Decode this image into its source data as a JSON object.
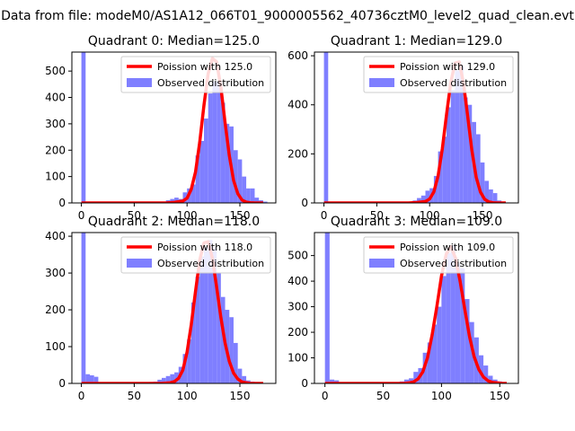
{
  "figure": {
    "suptitle": "Data from file: modeM0/AS1A12_066T01_9000005562_40736cztM0_level2_quad_clean.evt"
  },
  "colors": {
    "observed": "#7f7fff",
    "poisson": "#ff0000",
    "axes": "#000000",
    "background": "#ffffff"
  },
  "chart_data": [
    {
      "type": "bar",
      "title": "Quadrant 0: Median=125.0",
      "xlabel": "",
      "ylabel": "",
      "xlim": [
        -9,
        184
      ],
      "ylim": [
        0,
        572
      ],
      "xticks": [
        0,
        50,
        100,
        150
      ],
      "yticks": [
        0,
        100,
        200,
        300,
        400,
        500
      ],
      "legend": {
        "placement": "top-right",
        "entries": [
          "Poission with 125.0",
          "Observed distribution"
        ]
      },
      "poisson_mean": 125.0,
      "series": [
        {
          "name": "Observed distribution",
          "kind": "histogram",
          "bin_width": 4,
          "bins": [
            [
              0,
              572
            ],
            [
              4,
              2
            ],
            [
              8,
              2
            ],
            [
              12,
              1
            ],
            [
              16,
              1
            ],
            [
              20,
              1
            ],
            [
              24,
              0
            ],
            [
              28,
              0
            ],
            [
              32,
              0
            ],
            [
              36,
              0
            ],
            [
              40,
              0
            ],
            [
              44,
              0
            ],
            [
              48,
              0
            ],
            [
              52,
              0
            ],
            [
              56,
              0
            ],
            [
              60,
              0
            ],
            [
              64,
              1
            ],
            [
              68,
              1
            ],
            [
              72,
              2
            ],
            [
              76,
              5
            ],
            [
              80,
              10
            ],
            [
              84,
              15
            ],
            [
              88,
              20
            ],
            [
              92,
              15
            ],
            [
              96,
              40
            ],
            [
              100,
              55
            ],
            [
              104,
              70
            ],
            [
              108,
              180
            ],
            [
              112,
              235
            ],
            [
              116,
              320
            ],
            [
              120,
              415
            ],
            [
              124,
              460
            ],
            [
              128,
              460
            ],
            [
              132,
              380
            ],
            [
              136,
              300
            ],
            [
              140,
              290
            ],
            [
              144,
              200
            ],
            [
              148,
              165
            ],
            [
              152,
              100
            ],
            [
              156,
              55
            ],
            [
              160,
              55
            ],
            [
              164,
              20
            ],
            [
              168,
              10
            ],
            [
              172,
              5
            ]
          ]
        },
        {
          "name": "Poission with 125.0",
          "kind": "line",
          "x": [
            0,
            80,
            88,
            96,
            100,
            104,
            108,
            112,
            116,
            120,
            124,
            128,
            132,
            136,
            140,
            144,
            148,
            152,
            156,
            160,
            164,
            168,
            172
          ],
          "y": [
            0,
            0,
            2,
            7,
            18,
            52,
            117,
            230,
            370,
            490,
            548,
            535,
            440,
            305,
            180,
            85,
            35,
            11,
            3,
            1,
            0,
            0,
            0
          ]
        }
      ]
    },
    {
      "type": "bar",
      "title": "Quadrant 1: Median=129.0",
      "xlabel": "",
      "ylabel": "",
      "xlim": [
        -9,
        184
      ],
      "ylim": [
        0,
        615
      ],
      "xticks": [
        0,
        50,
        100,
        150
      ],
      "yticks": [
        0,
        200,
        400,
        600
      ],
      "legend": {
        "placement": "top-right",
        "entries": [
          "Poission with 129.0",
          "Observed distribution"
        ]
      },
      "poisson_mean": 129.0,
      "series": [
        {
          "name": "Observed distribution",
          "kind": "histogram",
          "bin_width": 4,
          "bins": [
            [
              0,
              615
            ],
            [
              4,
              0
            ],
            [
              8,
              0
            ],
            [
              12,
              0
            ],
            [
              16,
              0
            ],
            [
              20,
              0
            ],
            [
              24,
              0
            ],
            [
              28,
              0
            ],
            [
              32,
              0
            ],
            [
              36,
              0
            ],
            [
              40,
              0
            ],
            [
              44,
              0
            ],
            [
              48,
              0
            ],
            [
              52,
              0
            ],
            [
              56,
              0
            ],
            [
              60,
              0
            ],
            [
              64,
              0
            ],
            [
              68,
              0
            ],
            [
              72,
              0
            ],
            [
              76,
              2
            ],
            [
              80,
              5
            ],
            [
              84,
              10
            ],
            [
              88,
              20
            ],
            [
              92,
              30
            ],
            [
              96,
              50
            ],
            [
              100,
              60
            ],
            [
              104,
              110
            ],
            [
              108,
              210
            ],
            [
              112,
              270
            ],
            [
              116,
              390
            ],
            [
              120,
              460
            ],
            [
              124,
              540
            ],
            [
              128,
              560
            ],
            [
              132,
              430
            ],
            [
              136,
              400
            ],
            [
              140,
              330
            ],
            [
              144,
              280
            ],
            [
              148,
              165
            ],
            [
              152,
              90
            ],
            [
              156,
              55
            ],
            [
              160,
              40
            ],
            [
              164,
              10
            ],
            [
              168,
              5
            ],
            [
              172,
              2
            ]
          ]
        },
        {
          "name": "Poission with 129.0",
          "kind": "line",
          "x": [
            0,
            80,
            88,
            96,
            100,
            104,
            108,
            112,
            116,
            120,
            124,
            128,
            132,
            136,
            140,
            144,
            148,
            152,
            156,
            160,
            164,
            168,
            172
          ],
          "y": [
            0,
            0,
            2,
            6,
            16,
            45,
            110,
            220,
            360,
            490,
            570,
            575,
            490,
            355,
            215,
            105,
            45,
            15,
            4,
            1,
            0,
            0,
            0
          ]
        }
      ]
    },
    {
      "type": "bar",
      "title": "Quadrant 2: Median=118.0",
      "xlabel": "",
      "ylabel": "",
      "xlim": [
        -9,
        184
      ],
      "ylim": [
        0,
        410
      ],
      "xticks": [
        0,
        50,
        100,
        150
      ],
      "yticks": [
        0,
        100,
        200,
        300,
        400
      ],
      "legend": {
        "placement": "top-right",
        "entries": [
          "Poission with 118.0",
          "Observed distribution"
        ]
      },
      "poisson_mean": 118.0,
      "series": [
        {
          "name": "Observed distribution",
          "kind": "histogram",
          "bin_width": 4,
          "bins": [
            [
              0,
              410
            ],
            [
              4,
              25
            ],
            [
              8,
              22
            ],
            [
              12,
              18
            ],
            [
              16,
              2
            ],
            [
              20,
              1
            ],
            [
              24,
              1
            ],
            [
              28,
              1
            ],
            [
              32,
              1
            ],
            [
              36,
              1
            ],
            [
              40,
              2
            ],
            [
              44,
              2
            ],
            [
              48,
              2
            ],
            [
              52,
              2
            ],
            [
              56,
              2
            ],
            [
              60,
              2
            ],
            [
              64,
              4
            ],
            [
              68,
              5
            ],
            [
              72,
              10
            ],
            [
              76,
              15
            ],
            [
              80,
              20
            ],
            [
              84,
              25
            ],
            [
              88,
              30
            ],
            [
              92,
              45
            ],
            [
              96,
              80
            ],
            [
              100,
              120
            ],
            [
              104,
              220
            ],
            [
              108,
              290
            ],
            [
              112,
              345
            ],
            [
              116,
              370
            ],
            [
              120,
              390
            ],
            [
              124,
              370
            ],
            [
              128,
              300
            ],
            [
              132,
              235
            ],
            [
              136,
              200
            ],
            [
              140,
              180
            ],
            [
              144,
              110
            ],
            [
              148,
              40
            ],
            [
              152,
              20
            ],
            [
              156,
              8
            ],
            [
              160,
              5
            ],
            [
              164,
              2
            ],
            [
              168,
              2
            ],
            [
              172,
              1
            ]
          ]
        },
        {
          "name": "Poission with 118.0",
          "kind": "line",
          "x": [
            0,
            76,
            84,
            88,
            92,
            96,
            100,
            104,
            108,
            112,
            116,
            120,
            124,
            128,
            132,
            136,
            140,
            144,
            148,
            152,
            156,
            160,
            164,
            172
          ],
          "y": [
            0,
            0,
            2,
            5,
            14,
            36,
            85,
            160,
            250,
            335,
            382,
            385,
            340,
            262,
            180,
            110,
            60,
            28,
            12,
            4,
            2,
            0,
            0,
            0
          ]
        }
      ]
    },
    {
      "type": "bar",
      "title": "Quadrant 3: Median=109.0",
      "xlabel": "",
      "ylabel": "",
      "xlim": [
        -9,
        166
      ],
      "ylim": [
        0,
        590
      ],
      "xticks": [
        0,
        50,
        100,
        150
      ],
      "yticks": [
        0,
        100,
        200,
        300,
        400,
        500
      ],
      "legend": {
        "placement": "top-right",
        "entries": [
          "Poission with 109.0",
          "Observed distribution"
        ]
      },
      "poisson_mean": 109.0,
      "series": [
        {
          "name": "Observed distribution",
          "kind": "histogram",
          "bin_width": 4,
          "bins": [
            [
              0,
              590
            ],
            [
              4,
              15
            ],
            [
              8,
              12
            ],
            [
              12,
              4
            ],
            [
              16,
              2
            ],
            [
              20,
              1
            ],
            [
              24,
              1
            ],
            [
              28,
              1
            ],
            [
              32,
              1
            ],
            [
              36,
              1
            ],
            [
              40,
              2
            ],
            [
              44,
              2
            ],
            [
              48,
              3
            ],
            [
              52,
              3
            ],
            [
              56,
              4
            ],
            [
              60,
              5
            ],
            [
              64,
              8
            ],
            [
              68,
              15
            ],
            [
              72,
              20
            ],
            [
              76,
              45
            ],
            [
              80,
              60
            ],
            [
              84,
              120
            ],
            [
              88,
              160
            ],
            [
              92,
              230
            ],
            [
              96,
              300
            ],
            [
              100,
              420
            ],
            [
              104,
              510
            ],
            [
              108,
              540
            ],
            [
              112,
              470
            ],
            [
              116,
              450
            ],
            [
              120,
              330
            ],
            [
              124,
              240
            ],
            [
              128,
              180
            ],
            [
              132,
              110
            ],
            [
              136,
              70
            ],
            [
              140,
              30
            ],
            [
              144,
              15
            ],
            [
              148,
              8
            ],
            [
              152,
              5
            ]
          ]
        },
        {
          "name": "Poission with 109.0",
          "kind": "line",
          "x": [
            0,
            68,
            72,
            76,
            80,
            84,
            88,
            92,
            96,
            100,
            104,
            108,
            112,
            116,
            120,
            124,
            128,
            132,
            136,
            140,
            144,
            148,
            152,
            156
          ],
          "y": [
            0,
            0,
            2,
            6,
            18,
            45,
            100,
            190,
            300,
            420,
            505,
            535,
            490,
            400,
            290,
            185,
            105,
            55,
            25,
            10,
            4,
            2,
            0,
            0
          ]
        }
      ]
    }
  ]
}
